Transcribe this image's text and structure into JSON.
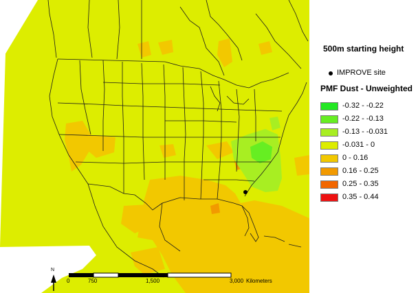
{
  "map": {
    "title": "500m starting height",
    "site_marker_label": "IMPROVE site",
    "legend_title": "PMF Dust - Unweighted",
    "legend_classes": [
      {
        "label": "-0.32 - -0.22",
        "color": "#22e822"
      },
      {
        "label": "-0.22 - -0.13",
        "color": "#66ee22"
      },
      {
        "label": "-0.13 - -0.031",
        "color": "#a8ee22"
      },
      {
        "label": "-0.031 - 0",
        "color": "#dded00"
      },
      {
        "label": "0 - 0.16",
        "color": "#f2c800"
      },
      {
        "label": "0.16 - 0.25",
        "color": "#f29a00"
      },
      {
        "label": "0.25 - 0.35",
        "color": "#f26600"
      },
      {
        "label": "0.35 - 0.44",
        "color": "#ee1111"
      }
    ],
    "scale_bar": {
      "ticks": [
        "0",
        "750",
        "1,500",
        "3,000"
      ],
      "unit": "Kilometers"
    },
    "north_arrow": "N",
    "water_color": "#ffffff",
    "boundary_color": "#1a1a1a"
  }
}
